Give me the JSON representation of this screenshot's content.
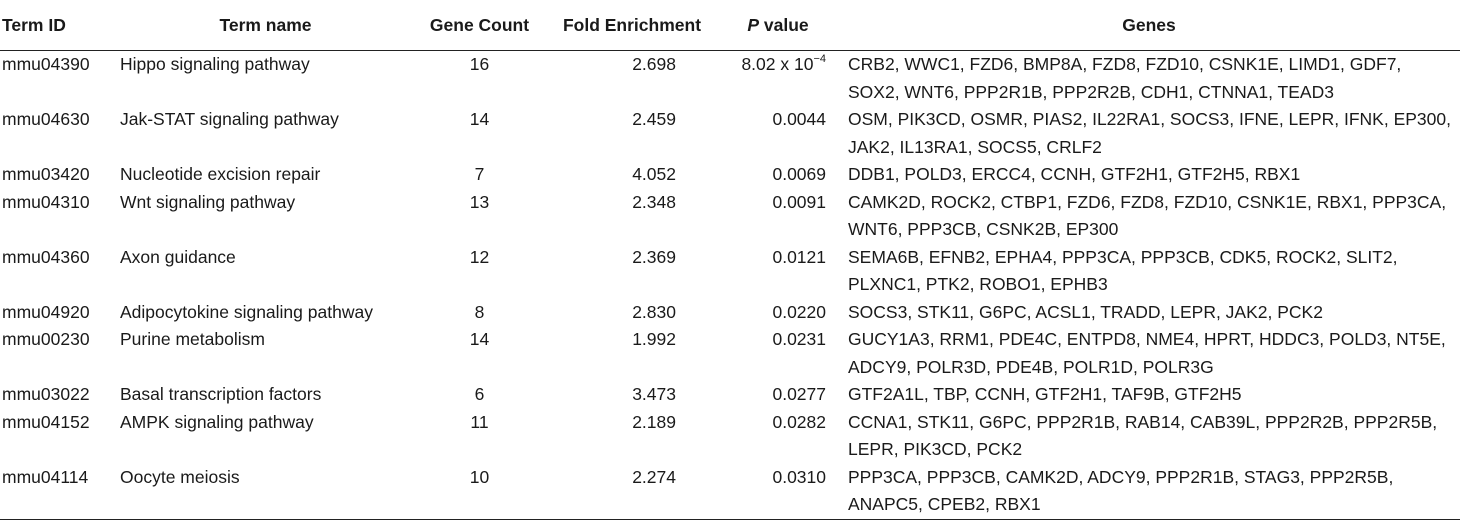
{
  "table": {
    "headers": {
      "term_id": "Term ID",
      "term_name": "Term name",
      "gene_count": "Gene Count",
      "fold_enrichment": "Fold Enrichment",
      "p_value_italic": "P",
      "p_value_rest": " value",
      "genes": "Genes"
    },
    "rows": [
      {
        "term_id": "mmu04390",
        "term_name": "Hippo signaling pathway",
        "gene_count": "16",
        "fold_enrichment": "2.698",
        "p_value_base": "8.02 x 10",
        "p_value_exp": "−4",
        "genes": "CRB2, WWC1, FZD6, BMP8A, FZD8, FZD10, CSNK1E, LIMD1, GDF7, SOX2, WNT6, PPP2R1B, PPP2R2B, CDH1, CTNNA1, TEAD3"
      },
      {
        "term_id": "mmu04630",
        "term_name": "Jak-STAT signaling pathway",
        "gene_count": "14",
        "fold_enrichment": "2.459",
        "p_value": "0.0044",
        "genes": "OSM, PIK3CD, OSMR, PIAS2, IL22RA1, SOCS3, IFNE, LEPR, IFNK, EP300, JAK2, IL13RA1, SOCS5, CRLF2"
      },
      {
        "term_id": "mmu03420",
        "term_name": "Nucleotide excision repair",
        "gene_count": "7",
        "fold_enrichment": "4.052",
        "p_value": "0.0069",
        "genes": "DDB1, POLD3, ERCC4, CCNH, GTF2H1, GTF2H5, RBX1"
      },
      {
        "term_id": "mmu04310",
        "term_name": "Wnt signaling pathway",
        "gene_count": "13",
        "fold_enrichment": "2.348",
        "p_value": "0.0091",
        "genes": "CAMK2D, ROCK2, CTBP1, FZD6, FZD8, FZD10, CSNK1E, RBX1, PPP3CA, WNT6, PPP3CB, CSNK2B, EP300"
      },
      {
        "term_id": "mmu04360",
        "term_name": "Axon guidance",
        "gene_count": "12",
        "fold_enrichment": "2.369",
        "p_value": "0.0121",
        "genes": "SEMA6B, EFNB2, EPHA4, PPP3CA, PPP3CB, CDK5, ROCK2, SLIT2, PLXNC1, PTK2, ROBO1, EPHB3"
      },
      {
        "term_id": "mmu04920",
        "term_name": "Adipocytokine signaling pathway",
        "gene_count": "8",
        "fold_enrichment": "2.830",
        "p_value": "0.0220",
        "genes": "SOCS3, STK11, G6PC, ACSL1, TRADD, LEPR, JAK2, PCK2"
      },
      {
        "term_id": "mmu00230",
        "term_name": "Purine metabolism",
        "gene_count": "14",
        "fold_enrichment": "1.992",
        "p_value": "0.0231",
        "genes": "GUCY1A3, RRM1, PDE4C, ENTPD8, NME4, HPRT, HDDC3, POLD3, NT5E, ADCY9, POLR3D, PDE4B, POLR1D, POLR3G"
      },
      {
        "term_id": "mmu03022",
        "term_name": "Basal transcription factors",
        "gene_count": "6",
        "fold_enrichment": "3.473",
        "p_value": "0.0277",
        "genes": "GTF2A1L, TBP, CCNH, GTF2H1, TAF9B, GTF2H5"
      },
      {
        "term_id": "mmu04152",
        "term_name": "AMPK signaling pathway",
        "gene_count": "11",
        "fold_enrichment": "2.189",
        "p_value": "0.0282",
        "genes": "CCNA1, STK11, G6PC, PPP2R1B, RAB14, CAB39L, PPP2R2B, PPP2R5B, LEPR, PIK3CD, PCK2"
      },
      {
        "term_id": "mmu04114",
        "term_name": "Oocyte meiosis",
        "gene_count": "10",
        "fold_enrichment": "2.274",
        "p_value": "0.0310",
        "genes": "PPP3CA, PPP3CB, CAMK2D, ADCY9, PPP2R1B, STAG3, PPP2R5B, ANAPC5, CPEB2, RBX1"
      }
    ]
  }
}
